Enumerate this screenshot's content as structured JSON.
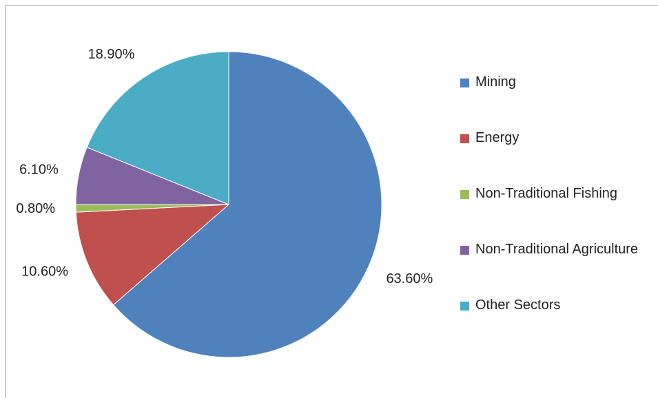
{
  "chart_data": {
    "type": "pie",
    "categories": [
      "Mining",
      "Energy",
      "Non-Traditional Fishing",
      "Non-Traditional Agriculture",
      "Other Sectors"
    ],
    "values": [
      63.6,
      10.6,
      0.8,
      6.1,
      18.9
    ],
    "value_labels": [
      "63.60%",
      "10.60%",
      "0.80%",
      "6.10%",
      "18.90%"
    ],
    "colors": [
      "#4f81bd",
      "#c0504d",
      "#9bbb59",
      "#8064a2",
      "#4bacc6"
    ],
    "legend": "right"
  }
}
